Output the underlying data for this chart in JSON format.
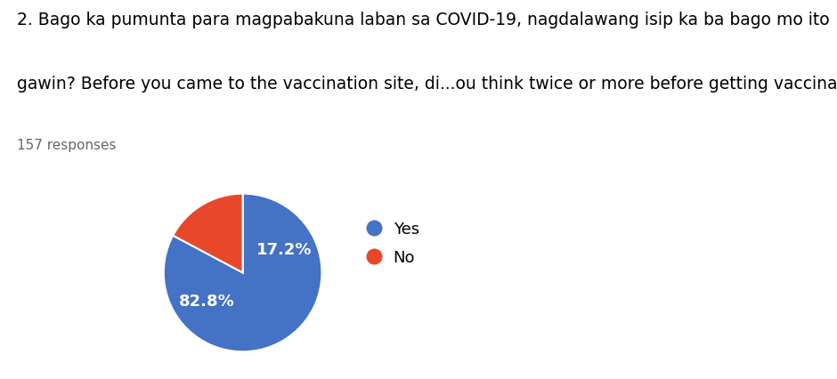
{
  "title_line1": "2. Bago ka pumunta para magpabakuna laban sa COVID-19, nagdalawang isip ka ba bago mo ito",
  "title_line2": "gawin? Before you came to the vaccination site, di...ou think twice or more before getting vaccinated?",
  "subtitle": "157 responses",
  "labels": [
    "Yes",
    "No"
  ],
  "values": [
    82.8,
    17.2
  ],
  "colors": [
    "#4472C4",
    "#E8472A"
  ],
  "pct_labels": [
    "82.8%",
    "17.2%"
  ],
  "legend_labels": [
    "Yes",
    "No"
  ],
  "background_color": "#ffffff",
  "text_color": "#000000",
  "title_fontsize": 13.5,
  "subtitle_fontsize": 11,
  "pct_fontsize": 13,
  "legend_fontsize": 13
}
